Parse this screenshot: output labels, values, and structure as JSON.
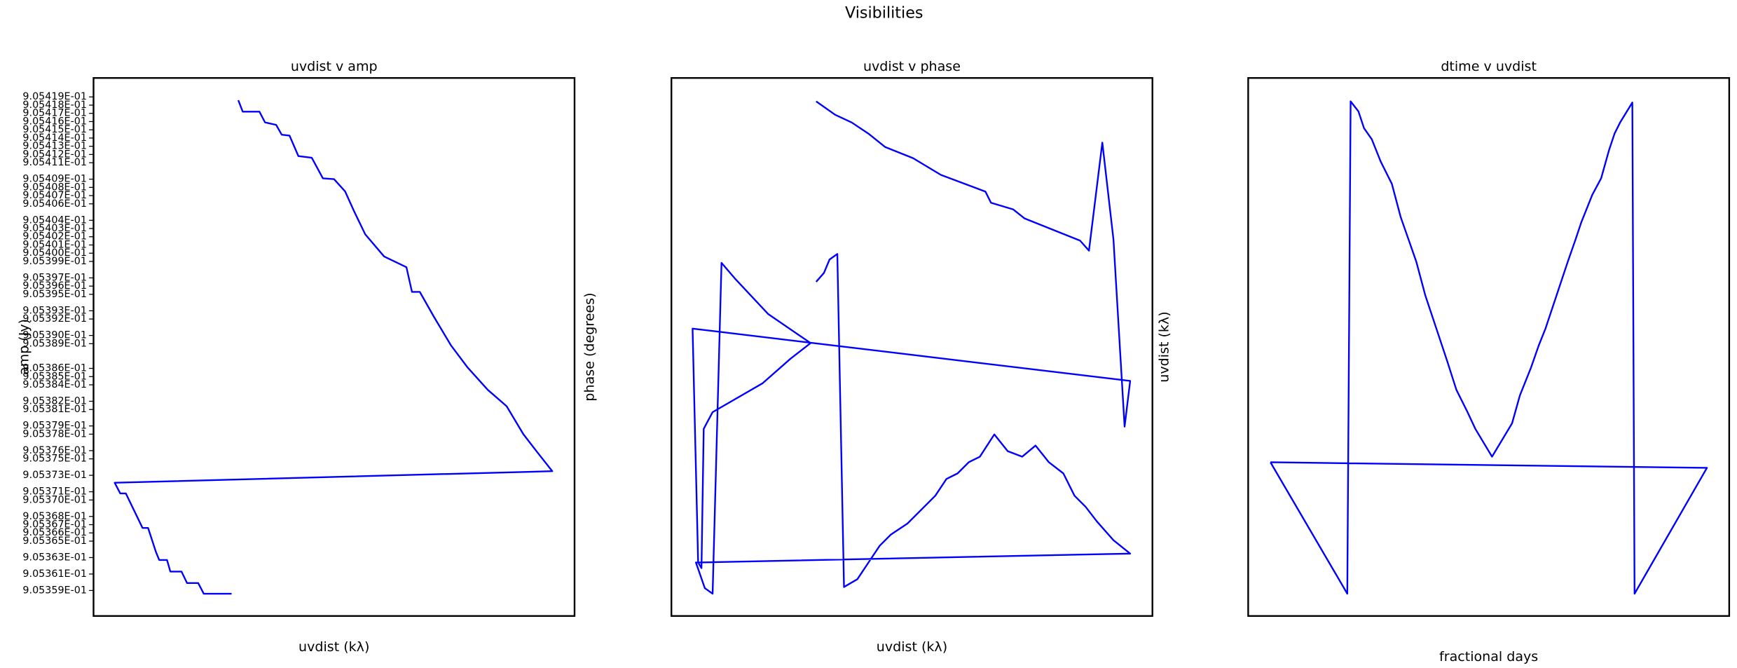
{
  "title": "Visibilities",
  "chart_data": [
    {
      "type": "line",
      "title": "uvdist v amp",
      "x_label": "uvdist (kλ)",
      "y_label": "amp (Jy)",
      "xlim": [
        0,
        432
      ],
      "ylim": [
        0.9053559,
        0.9054213
      ],
      "yticks": [
        {
          "value": 0.905419,
          "label": "9.05419E-01"
        },
        {
          "value": 0.905418,
          "label": "9.05418E-01"
        },
        {
          "value": 0.905417,
          "label": "9.05417E-01"
        },
        {
          "value": 0.905416,
          "label": "9.05416E-01"
        },
        {
          "value": 0.905415,
          "label": "9.05415E-01"
        },
        {
          "value": 0.905414,
          "label": "9.05414E-01"
        },
        {
          "value": 0.905413,
          "label": "9.05413E-01"
        },
        {
          "value": 0.905412,
          "label": "9.05412E-01"
        },
        {
          "value": 0.905411,
          "label": "9.05411E-01"
        },
        {
          "value": 0.905409,
          "label": "9.05409E-01"
        },
        {
          "value": 0.905408,
          "label": "9.05408E-01"
        },
        {
          "value": 0.905407,
          "label": "9.05407E-01"
        },
        {
          "value": 0.905406,
          "label": "9.05406E-01"
        },
        {
          "value": 0.905404,
          "label": "9.05404E-01"
        },
        {
          "value": 0.905403,
          "label": "9.05403E-01"
        },
        {
          "value": 0.905402,
          "label": "9.05402E-01"
        },
        {
          "value": 0.905401,
          "label": "9.05401E-01"
        },
        {
          "value": 0.9054,
          "label": "9.05400E-01"
        },
        {
          "value": 0.905399,
          "label": "9.05399E-01"
        },
        {
          "value": 0.905397,
          "label": "9.05397E-01"
        },
        {
          "value": 0.905396,
          "label": "9.05396E-01"
        },
        {
          "value": 0.905395,
          "label": "9.05395E-01"
        },
        {
          "value": 0.905393,
          "label": "9.05393E-01"
        },
        {
          "value": 0.905392,
          "label": "9.05392E-01"
        },
        {
          "value": 0.90539,
          "label": "9.05390E-01"
        },
        {
          "value": 0.905389,
          "label": "9.05389E-01"
        },
        {
          "value": 0.905386,
          "label": "9.05386E-01"
        },
        {
          "value": 0.905385,
          "label": "9.05385E-01"
        },
        {
          "value": 0.905384,
          "label": "9.05384E-01"
        },
        {
          "value": 0.905382,
          "label": "9.05382E-01"
        },
        {
          "value": 0.905381,
          "label": "9.05381E-01"
        },
        {
          "value": 0.905379,
          "label": "9.05379E-01"
        },
        {
          "value": 0.905378,
          "label": "9.05378E-01"
        },
        {
          "value": 0.905376,
          "label": "9.05376E-01"
        },
        {
          "value": 0.905375,
          "label": "9.05375E-01"
        },
        {
          "value": 0.905373,
          "label": "9.05373E-01"
        },
        {
          "value": 0.905371,
          "label": "9.05371E-01"
        },
        {
          "value": 0.90537,
          "label": "9.05370E-01"
        },
        {
          "value": 0.905368,
          "label": "9.05368E-01"
        },
        {
          "value": 0.905367,
          "label": "9.05367E-01"
        },
        {
          "value": 0.905366,
          "label": "9.05366E-01"
        },
        {
          "value": 0.905365,
          "label": "9.05365E-01"
        },
        {
          "value": 0.905363,
          "label": "9.05363E-01"
        },
        {
          "value": 0.905361,
          "label": "9.05361E-01"
        },
        {
          "value": 0.905359,
          "label": "9.05359E-01"
        }
      ],
      "series": [
        {
          "color": "#0000ff",
          "x": [
            130,
            134,
            149,
            154,
            164,
            169,
            176,
            184,
            196,
            206,
            216,
            226,
            234,
            244,
            261,
            281,
            286,
            293,
            306,
            321,
            336,
            354,
            371,
            386,
            398,
            412,
            19,
            24,
            29,
            44,
            49,
            56,
            59,
            66,
            69,
            79,
            84,
            94,
            99,
            124
          ],
          "values": [
            0.9054186,
            0.9054172,
            0.9054172,
            0.9054159,
            0.9054156,
            0.9054144,
            0.9054143,
            0.9054118,
            0.9054116,
            0.9054091,
            0.905409,
            0.9054075,
            0.9054051,
            0.9054023,
            0.9053996,
            0.9053983,
            0.9053953,
            0.9053953,
            0.9053922,
            0.9053888,
            0.9053861,
            0.9053834,
            0.9053814,
            0.905378,
            0.9053759,
            0.9053735,
            0.9053721,
            0.9053708,
            0.9053708,
            0.9053666,
            0.9053666,
            0.9053637,
            0.9053627,
            0.9053627,
            0.9053613,
            0.9053613,
            0.9053599,
            0.9053599,
            0.9053586,
            0.9053586
          ]
        }
      ]
    },
    {
      "type": "line",
      "title": "uvdist v phase",
      "x_label": "uvdist (kλ)",
      "y_label": "phase (degrees)",
      "xlim": [
        0,
        432
      ],
      "ylim": [
        0,
        483
      ],
      "series": [
        {
          "color": "#0000ff",
          "x": [
            130,
            147,
            162,
            177,
            192,
            217,
            242,
            282,
            287,
            307,
            317,
            352,
            367,
            375,
            387,
            397,
            407,
            412,
            19,
            24,
            27,
            29,
            37,
            82,
            107,
            125,
            87,
            57,
            45,
            37,
            30,
            22,
            412,
            397,
            382,
            372,
            362,
            352,
            339,
            327,
            315,
            302,
            290,
            277,
            267,
            257,
            247,
            237,
            227,
            212,
            197,
            187,
            177,
            167,
            155,
            149,
            142,
            137,
            130
          ],
          "values": [
            462,
            450,
            443,
            433,
            421,
            411,
            396,
            381,
            371,
            365,
            357,
            343,
            337,
            328,
            425,
            338,
            170,
            211,
            258,
            48,
            43,
            168,
            183,
            209,
            231,
            245,
            271,
            303,
            317,
            20,
            25,
            48,
            56,
            68,
            85,
            98,
            108,
            128,
            138,
            153,
            143,
            148,
            163,
            143,
            138,
            128,
            123,
            108,
            98,
            83,
            73,
            63,
            48,
            33,
            26,
            325,
            320,
            308,
            300
          ]
        }
      ]
    },
    {
      "type": "line",
      "title": "dtime v uvdist",
      "x_label": "fractional days",
      "y_label": "uvdist (kλ)",
      "xlim": [
        0,
        432
      ],
      "ylim": [
        0,
        483
      ],
      "series": [
        {
          "color": "#0000ff",
          "x": [
            20,
            89,
            92,
            99,
            104,
            111,
            119,
            129,
            137,
            144,
            151,
            159,
            169,
            179,
            187,
            197,
            204,
            219,
            237,
            244,
            254,
            261,
            267,
            277,
            287,
            294,
            299,
            309,
            317,
            324,
            329,
            334,
            345,
            347,
            412,
            20
          ],
          "values": [
            138,
            20,
            462,
            453,
            438,
            428,
            408,
            388,
            358,
            338,
            318,
            288,
            258,
            228,
            203,
            183,
            168,
            143,
            173,
            198,
            223,
            243,
            258,
            288,
            318,
            338,
            353,
            378,
            393,
            418,
            433,
            443,
            461,
            20,
            133,
            138
          ]
        }
      ]
    }
  ]
}
